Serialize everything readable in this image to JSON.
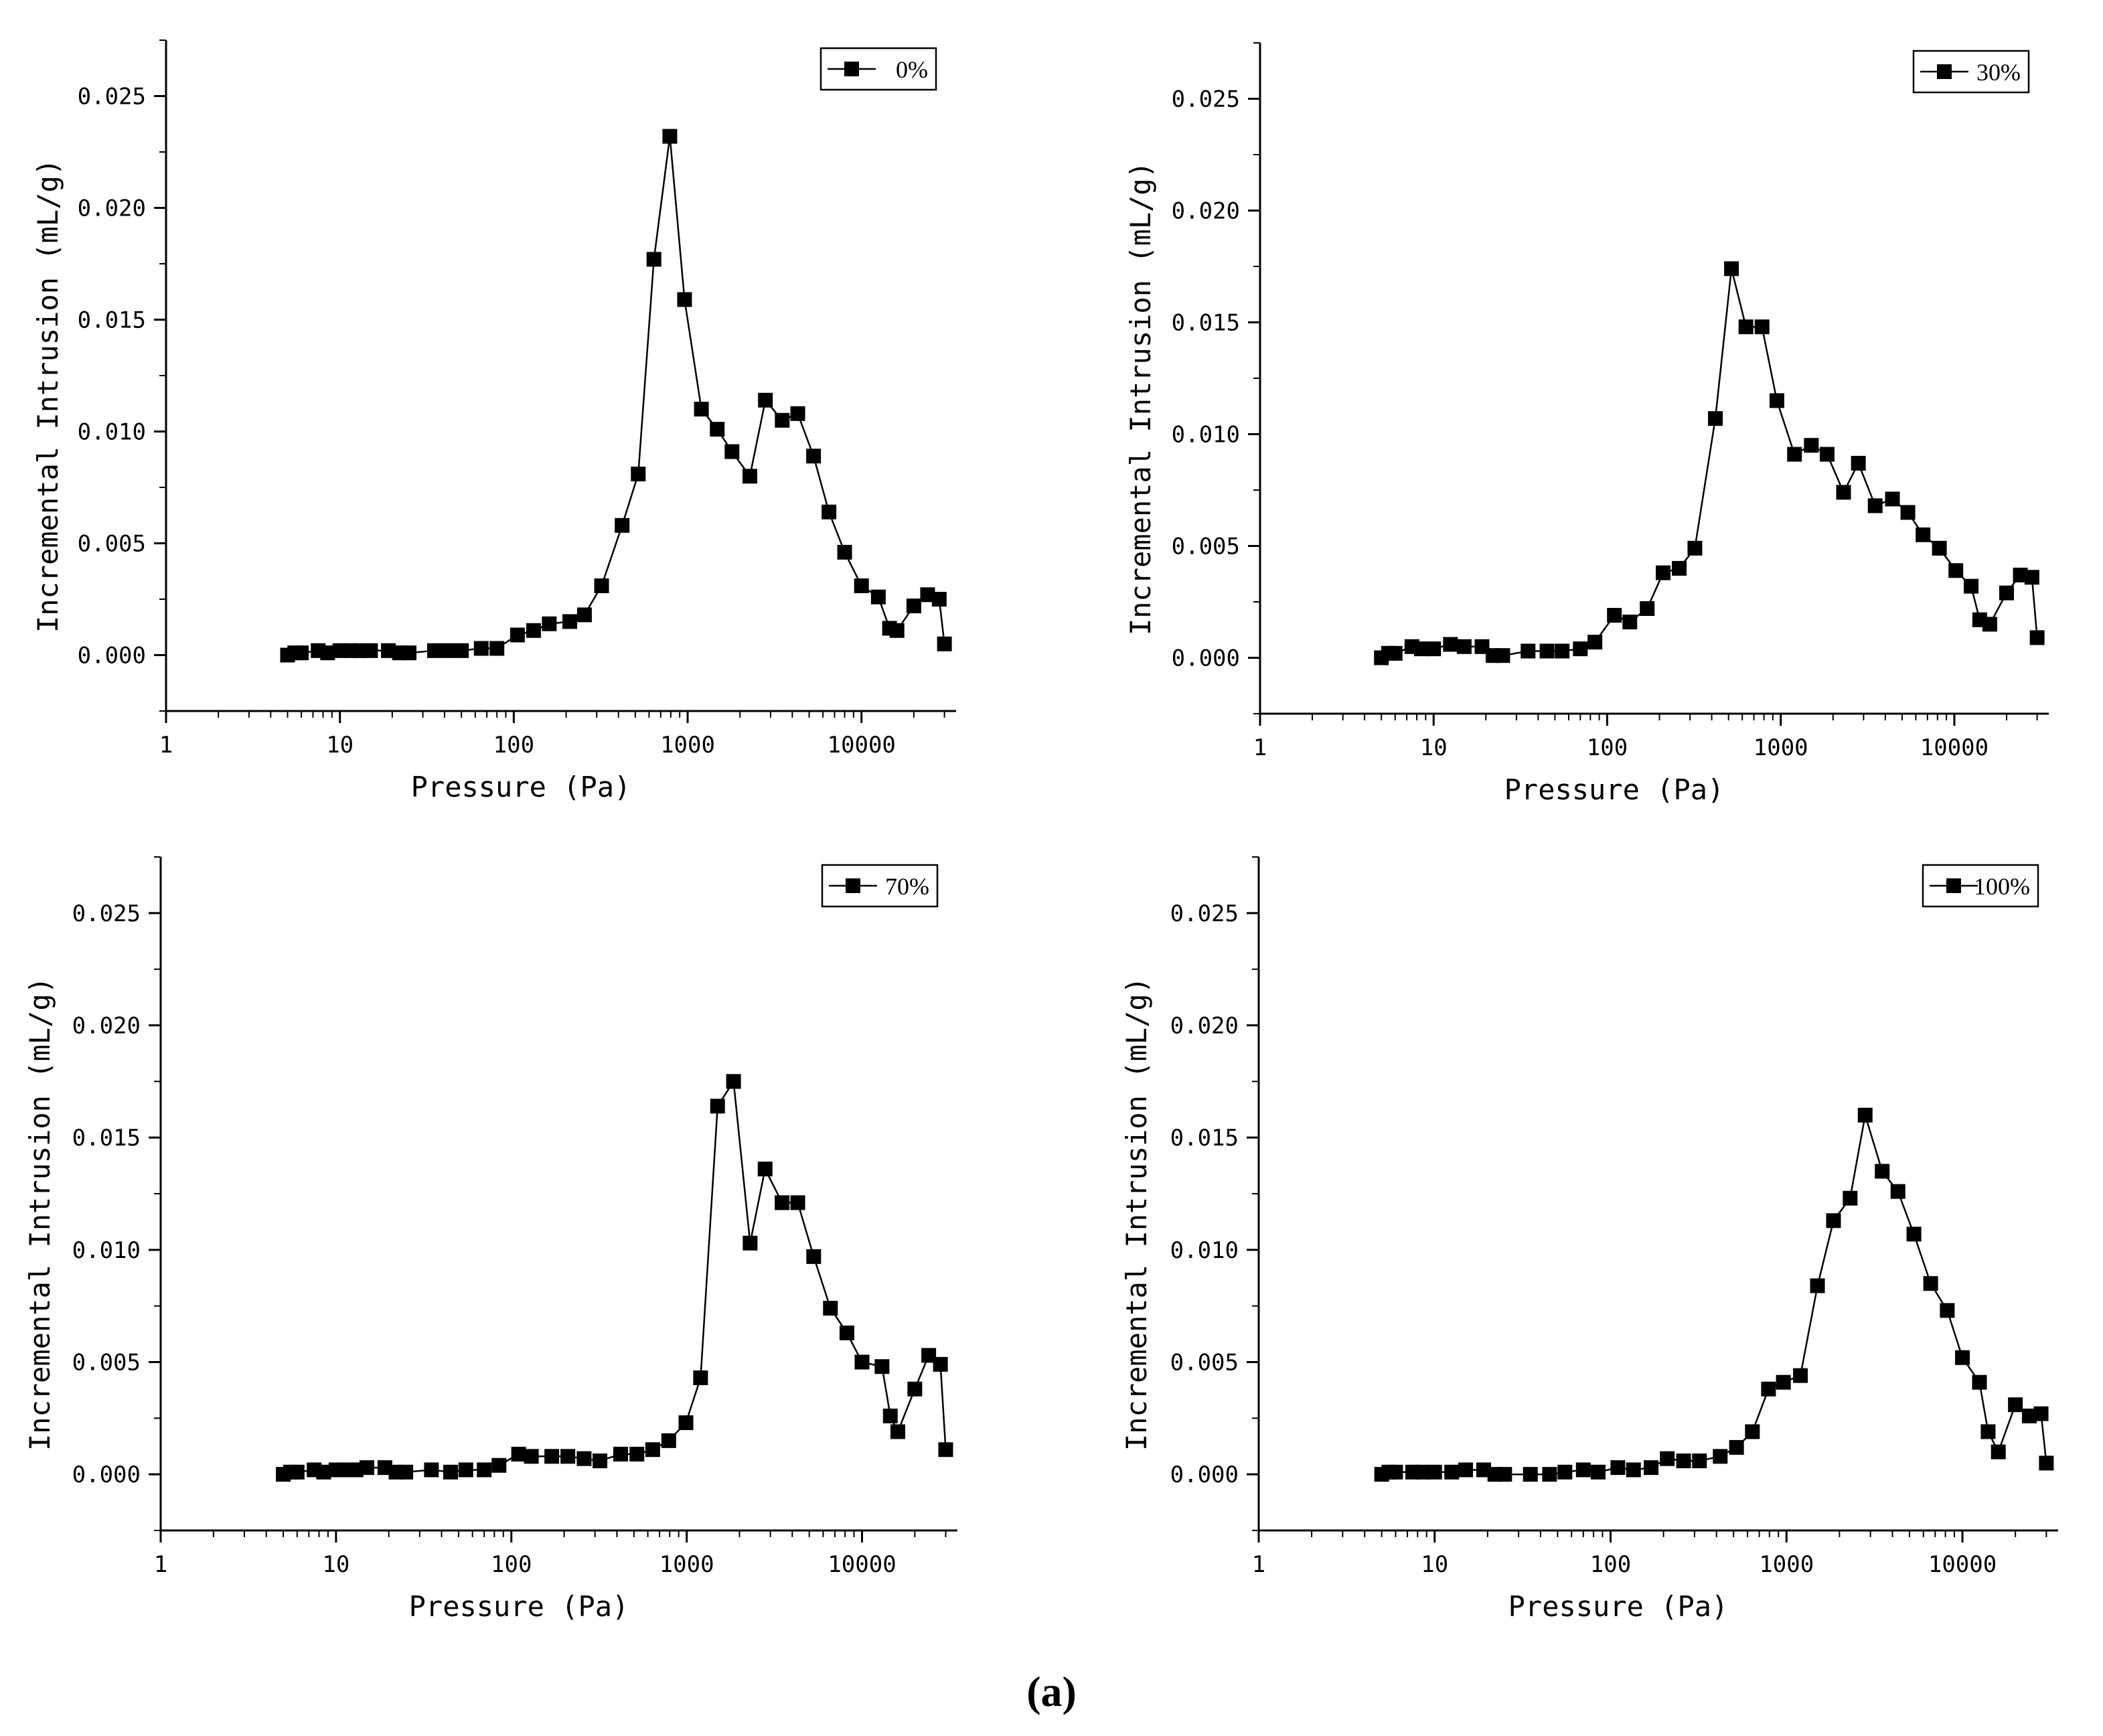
{
  "figure": {
    "caption": "(a)"
  },
  "chart_data": [
    {
      "type": "line",
      "legend": "0%",
      "legend_position": "top-right",
      "xlabel": "Pressure (Pa)",
      "ylabel": "Incremental Intrusion (mL/g)",
      "xscale": "log",
      "xlim": [
        1,
        35000
      ],
      "ylim": [
        -0.0025,
        0.0275
      ],
      "xticks": [
        1,
        10,
        100,
        1000,
        10000
      ],
      "xtick_labels": [
        "1",
        "10",
        "100",
        "1000",
        "10000"
      ],
      "yticks": [
        0,
        0.005,
        0.01,
        0.015,
        0.02,
        0.025
      ],
      "ytick_labels": [
        "0.000",
        "0.005",
        "0.010",
        "0.015",
        "0.020",
        "0.025"
      ],
      "x": [
        5,
        5.5,
        6,
        7.5,
        8.5,
        10,
        11.5,
        13,
        15,
        19,
        22,
        25,
        35,
        42,
        50,
        65,
        80,
        105,
        130,
        160,
        210,
        255,
        320,
        420,
        520,
        640,
        790,
        960,
        1200,
        1480,
        1800,
        2280,
        2800,
        3500,
        4300,
        5300,
        6500,
        8000,
        10000,
        12500,
        14500,
        16000,
        20000,
        24000,
        28000,
        30000
      ],
      "y": [
        0.0,
        0.0001,
        0.0001,
        0.0002,
        0.0001,
        0.0002,
        0.0002,
        0.0002,
        0.0002,
        0.0002,
        0.0001,
        0.0001,
        0.0002,
        0.0002,
        0.0002,
        0.0003,
        0.0003,
        0.0009,
        0.0011,
        0.0014,
        0.0015,
        0.0018,
        0.0031,
        0.0058,
        0.0081,
        0.0177,
        0.0232,
        0.0159,
        0.011,
        0.0101,
        0.0091,
        0.008,
        0.0114,
        0.0105,
        0.0108,
        0.0089,
        0.0064,
        0.0046,
        0.0031,
        0.0026,
        0.0012,
        0.0011,
        0.0022,
        0.0027,
        0.0025,
        0.0005
      ]
    },
    {
      "type": "line",
      "legend": "30%",
      "legend_position": "top-right",
      "xlabel": "Pressure (Pa)",
      "ylabel": "Incremental Intrusion (mL/g)",
      "xscale": "log",
      "xlim": [
        1,
        35000
      ],
      "ylim": [
        -0.0025,
        0.0275
      ],
      "xticks": [
        1,
        10,
        100,
        1000,
        10000
      ],
      "xtick_labels": [
        "1",
        "10",
        "100",
        "1000",
        "10000"
      ],
      "yticks": [
        0,
        0.005,
        0.01,
        0.015,
        0.02,
        0.025
      ],
      "ytick_labels": [
        "0.000",
        "0.005",
        "0.010",
        "0.015",
        "0.020",
        "0.025"
      ],
      "x": [
        5,
        5.5,
        6,
        7.5,
        8.5,
        10,
        12.5,
        15,
        19,
        22,
        25,
        35,
        45,
        55,
        70,
        85,
        110,
        135,
        170,
        210,
        260,
        320,
        420,
        520,
        630,
        780,
        950,
        1200,
        1500,
        1850,
        2300,
        2800,
        3500,
        4400,
        5400,
        6600,
        8200,
        10200,
        12500,
        14000,
        16000,
        20000,
        24000,
        28000,
        30000
      ],
      "y": [
        0.0,
        0.0002,
        0.0002,
        0.0005,
        0.0004,
        0.0004,
        0.0006,
        0.0005,
        0.0005,
        0.0001,
        0.0001,
        0.0003,
        0.0003,
        0.0003,
        0.0004,
        0.0007,
        0.0019,
        0.0016,
        0.0022,
        0.0038,
        0.004,
        0.0049,
        0.0107,
        0.0174,
        0.0148,
        0.0148,
        0.0115,
        0.0091,
        0.0095,
        0.0091,
        0.0074,
        0.0087,
        0.0068,
        0.0071,
        0.0065,
        0.0055,
        0.0049,
        0.0039,
        0.0032,
        0.0017,
        0.0015,
        0.0029,
        0.0037,
        0.0036,
        0.0009
      ]
    },
    {
      "type": "line",
      "legend": "70%",
      "legend_position": "top-right",
      "xlabel": "Pressure (Pa)",
      "ylabel": "Incremental Intrusion (mL/g)",
      "xscale": "log",
      "xlim": [
        1,
        35000
      ],
      "ylim": [
        -0.0025,
        0.0275
      ],
      "xticks": [
        1,
        10,
        100,
        1000,
        10000
      ],
      "xtick_labels": [
        "1",
        "10",
        "100",
        "1000",
        "10000"
      ],
      "yticks": [
        0,
        0.005,
        0.01,
        0.015,
        0.02,
        0.025
      ],
      "ytick_labels": [
        "0.000",
        "0.005",
        "0.010",
        "0.015",
        "0.020",
        "0.025"
      ],
      "x": [
        5,
        5.5,
        6,
        7.5,
        8.5,
        10,
        11.5,
        13,
        15,
        19,
        22,
        25,
        35,
        45,
        55,
        70,
        85,
        110,
        130,
        170,
        210,
        260,
        320,
        420,
        520,
        640,
        790,
        990,
        1200,
        1500,
        1850,
        2300,
        2800,
        3500,
        4300,
        5300,
        6600,
        8200,
        10000,
        13000,
        14500,
        16000,
        20000,
        24000,
        28000,
        30000
      ],
      "y": [
        0.0,
        0.0001,
        0.0001,
        0.0002,
        0.0001,
        0.0002,
        0.0002,
        0.0002,
        0.0003,
        0.0003,
        0.0001,
        0.0001,
        0.0002,
        0.0001,
        0.0002,
        0.0002,
        0.0004,
        0.0009,
        0.0008,
        0.0008,
        0.0008,
        0.0007,
        0.0006,
        0.0009,
        0.0009,
        0.0011,
        0.0015,
        0.0023,
        0.0043,
        0.0164,
        0.0175,
        0.0103,
        0.0136,
        0.0121,
        0.0121,
        0.0097,
        0.0074,
        0.0063,
        0.005,
        0.0048,
        0.0026,
        0.0019,
        0.0038,
        0.0053,
        0.0049,
        0.0011
      ]
    },
    {
      "type": "line",
      "legend": "100%",
      "legend_position": "top-right",
      "xlabel": "Pressure (Pa)",
      "ylabel": "Incremental Intrusion (mL/g)",
      "xscale": "log",
      "xlim": [
        1,
        35000
      ],
      "ylim": [
        -0.0025,
        0.0275
      ],
      "xticks": [
        1,
        10,
        100,
        1000,
        10000
      ],
      "xtick_labels": [
        "1",
        "10",
        "100",
        "1000",
        "10000"
      ],
      "yticks": [
        0,
        0.005,
        0.01,
        0.015,
        0.02,
        0.025
      ],
      "ytick_labels": [
        "0.000",
        "0.005",
        "0.010",
        "0.015",
        "0.020",
        "0.025"
      ],
      "x": [
        5,
        5.5,
        6,
        7.5,
        8.5,
        10,
        12.5,
        15,
        19,
        22,
        25,
        35,
        45,
        55,
        70,
        85,
        110,
        135,
        170,
        210,
        260,
        320,
        420,
        520,
        640,
        790,
        960,
        1200,
        1500,
        1850,
        2300,
        2800,
        3500,
        4300,
        5300,
        6600,
        8200,
        10000,
        12500,
        14000,
        16000,
        20000,
        24000,
        28000,
        30000
      ],
      "y": [
        0.0,
        0.0001,
        0.0001,
        0.0001,
        0.0001,
        0.0001,
        0.0001,
        0.0002,
        0.0002,
        0.0,
        0.0,
        0.0,
        0.0,
        0.0001,
        0.0002,
        0.0001,
        0.0003,
        0.0002,
        0.0003,
        0.0007,
        0.0006,
        0.0006,
        0.0008,
        0.0012,
        0.0019,
        0.0038,
        0.0041,
        0.0044,
        0.0084,
        0.0113,
        0.0123,
        0.016,
        0.0135,
        0.0126,
        0.0107,
        0.0085,
        0.0073,
        0.0052,
        0.0041,
        0.0019,
        0.001,
        0.0031,
        0.0026,
        0.0027,
        0.0005
      ]
    }
  ]
}
